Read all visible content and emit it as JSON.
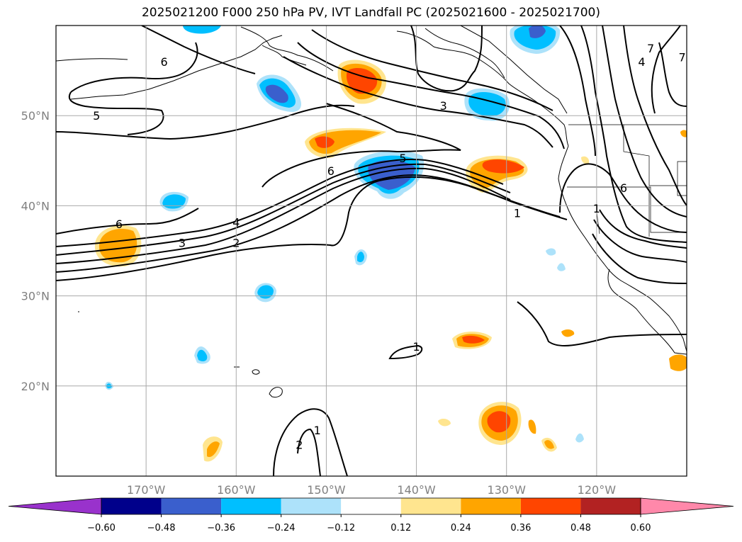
{
  "chart_data": {
    "type": "contour-map",
    "title": "2025021200 F000 250 hPa PV, IVT Landfall PC (2025021600 - 2025021700)",
    "lon_range": [
      -180,
      -110
    ],
    "lat_range": [
      10,
      60
    ],
    "grid": true,
    "x_ticks": [
      {
        "value": -170,
        "label": "170°W"
      },
      {
        "value": -160,
        "label": "160°W"
      },
      {
        "value": -150,
        "label": "150°W"
      },
      {
        "value": -140,
        "label": "140°W"
      },
      {
        "value": -130,
        "label": "130°W"
      },
      {
        "value": -120,
        "label": "120°W"
      }
    ],
    "y_ticks": [
      {
        "value": 20,
        "label": "20°N"
      },
      {
        "value": 30,
        "label": "30°N"
      },
      {
        "value": 40,
        "label": "40°N"
      },
      {
        "value": 50,
        "label": "50°N"
      }
    ],
    "colorbar": {
      "levels": [
        -0.6,
        -0.48,
        -0.36,
        -0.24,
        -0.12,
        0.12,
        0.24,
        0.36,
        0.48,
        0.6
      ],
      "labels": [
        "−0.60",
        "−0.48",
        "−0.36",
        "−0.24",
        "−0.12",
        "0.12",
        "0.24",
        "0.36",
        "0.48",
        "0.60"
      ],
      "colors": [
        "#9932CC",
        "#00008B",
        "#3A5FCD",
        "#00BFFF",
        "#ADE2FA",
        "#FFFFFF",
        "#FFE58F",
        "#FFA500",
        "#FF4500",
        "#B22222",
        "#FF88AA"
      ],
      "extend": "both"
    },
    "contour_labels": [
      {
        "text": "6",
        "lon": -168.0,
        "lat": 56.0
      },
      {
        "text": "5",
        "lon": -175.5,
        "lat": 50.0
      },
      {
        "text": "3",
        "lon": -137.0,
        "lat": 51.1
      },
      {
        "text": "5",
        "lon": -141.5,
        "lat": 45.3
      },
      {
        "text": "6",
        "lon": -149.5,
        "lat": 43.9
      },
      {
        "text": "1",
        "lon": -128.8,
        "lat": 39.2
      },
      {
        "text": "6",
        "lon": -117.0,
        "lat": 42.0
      },
      {
        "text": "1",
        "lon": -120.0,
        "lat": 39.7
      },
      {
        "text": "4",
        "lon": -115.0,
        "lat": 56.0
      },
      {
        "text": "7",
        "lon": -114.0,
        "lat": 57.5
      },
      {
        "text": "7",
        "lon": -110.5,
        "lat": 56.5
      },
      {
        "text": "6",
        "lon": -173.0,
        "lat": 38.0
      },
      {
        "text": "4",
        "lon": -160.0,
        "lat": 38.2
      },
      {
        "text": "3",
        "lon": -166.0,
        "lat": 35.9
      },
      {
        "text": "2",
        "lon": -160.0,
        "lat": 35.9
      },
      {
        "text": "1",
        "lon": -140.0,
        "lat": 24.4
      },
      {
        "text": "1",
        "lon": -151.0,
        "lat": 15.1
      },
      {
        "text": "2",
        "lon": -153.0,
        "lat": 13.5
      }
    ]
  }
}
